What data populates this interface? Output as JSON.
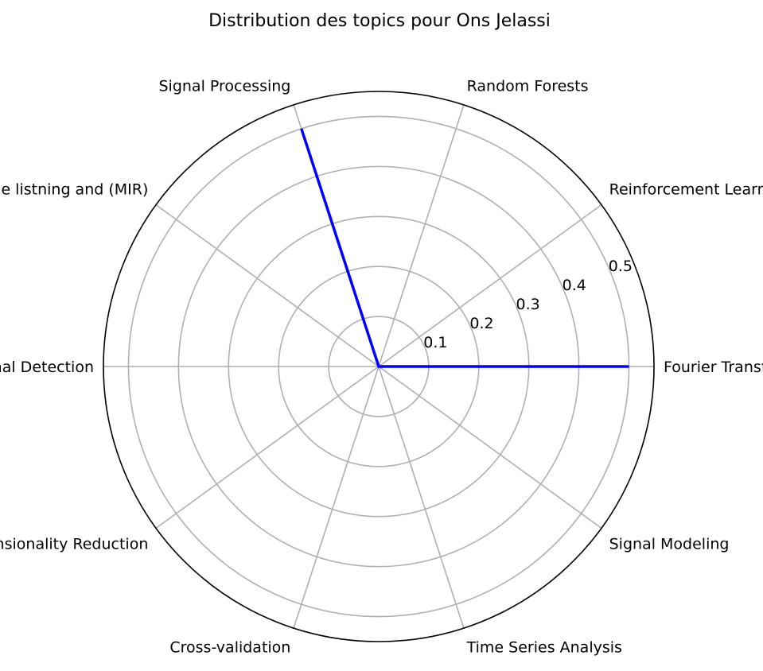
{
  "chart_data": {
    "type": "radar",
    "title": "Distribution des topics pour Ons Jelassi",
    "categories": [
      "Fourier Transform",
      "Reinforcement Learning",
      "Random Forests",
      "Signal Processing",
      "Machine listning and (MIR)",
      "Signal Detection",
      "Dimensionality Reduction",
      "Cross-validation",
      "Time Series Analysis",
      "Signal Modeling"
    ],
    "series": [
      {
        "values": [
          0.5,
          0,
          0,
          0.5,
          0,
          0,
          0,
          0,
          0,
          0
        ],
        "color": "#0000ff"
      }
    ],
    "radial_ticks": [
      "0.1",
      "0.2",
      "0.3",
      "0.4",
      "0.5"
    ],
    "radial_tick_values": [
      0.1,
      0.2,
      0.3,
      0.4,
      0.5
    ],
    "rmax": 0.55,
    "grid": true
  }
}
